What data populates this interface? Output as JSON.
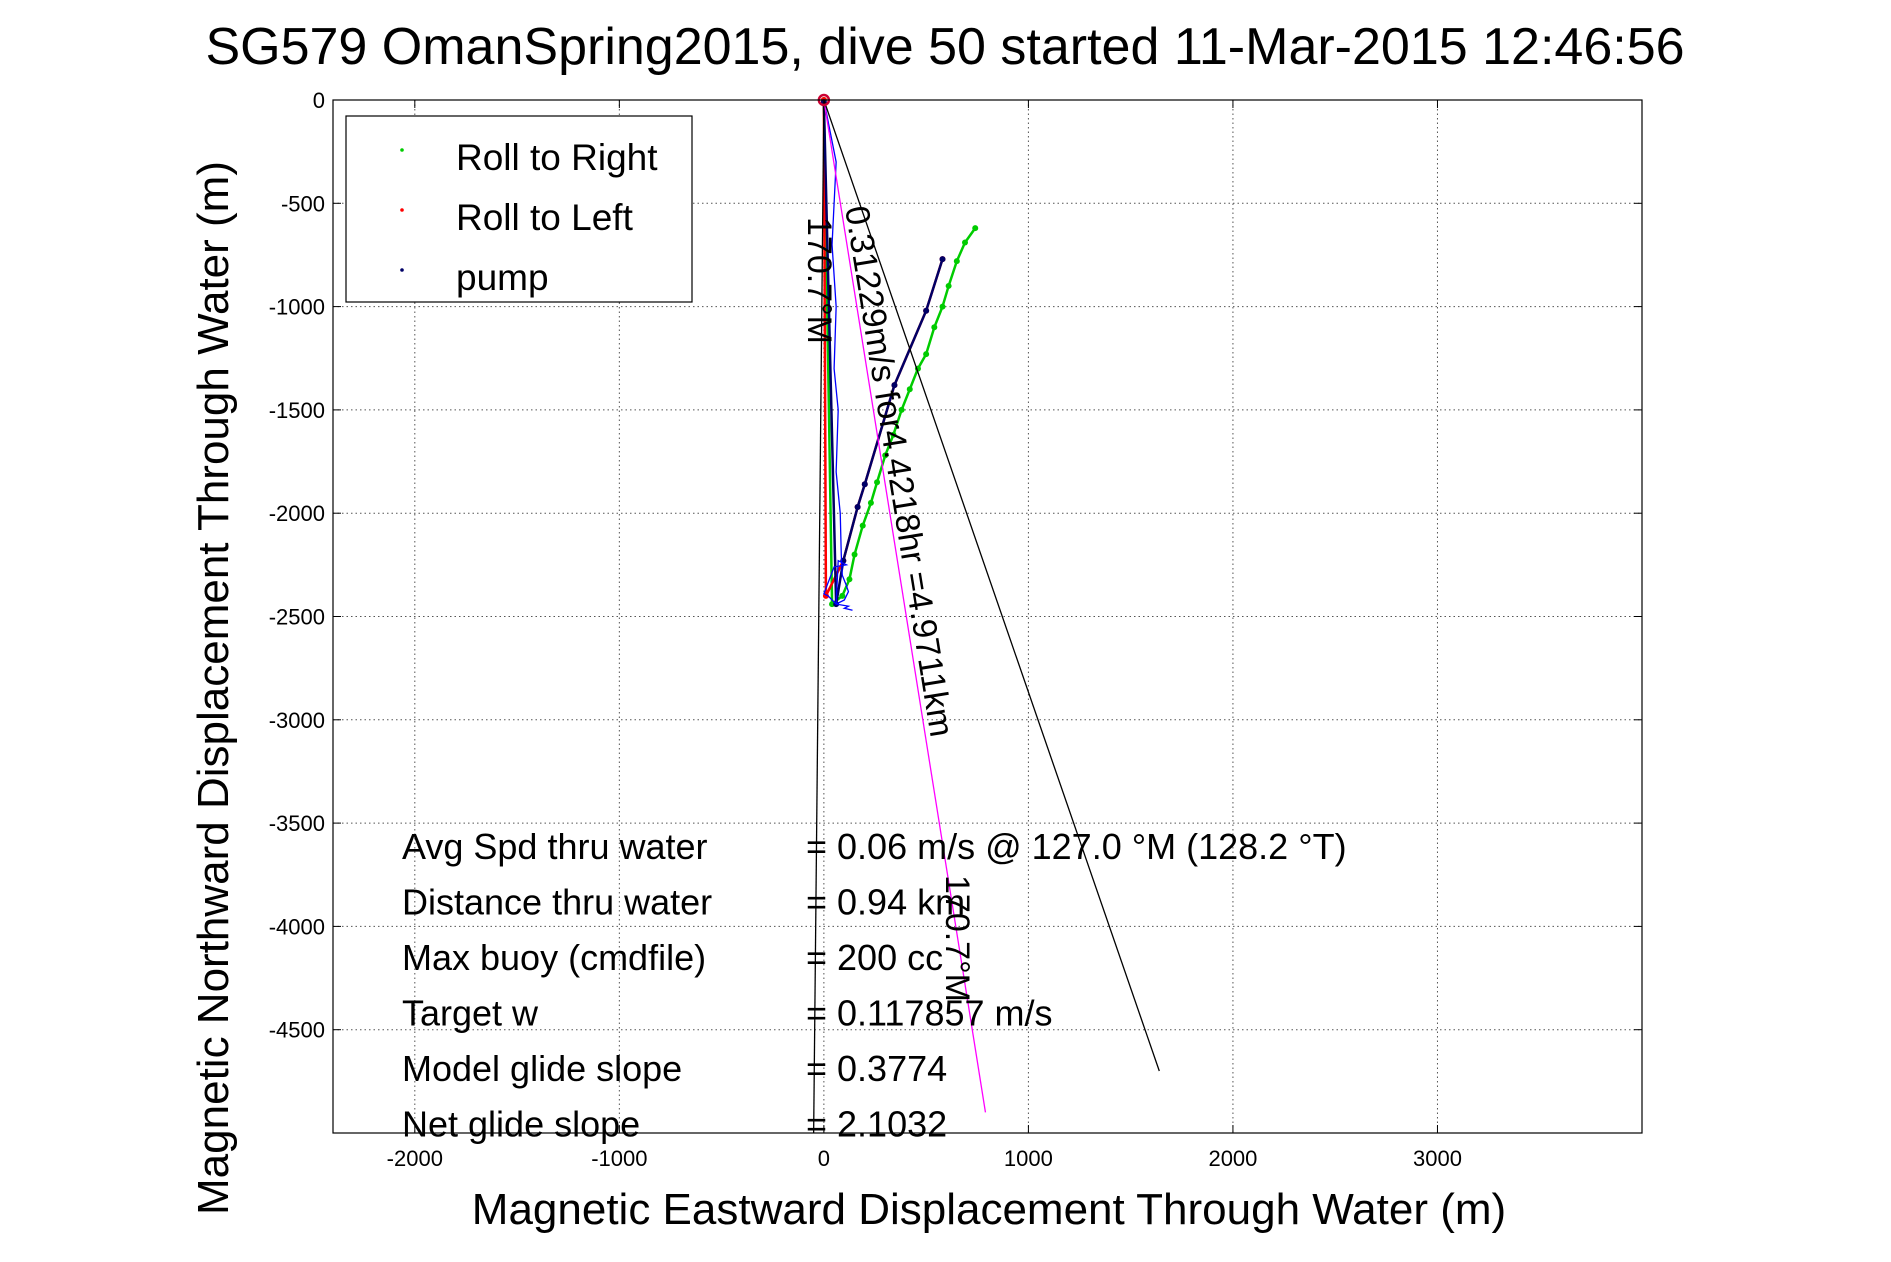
{
  "chart_data": {
    "type": "line",
    "title": "SG579 OmanSpring2015, dive 50 started 11-Mar-2015 12:46:56",
    "xlabel": "Magnetic Eastward Displacement Through Water (m)",
    "ylabel": "Magnetic Northward Displacement Through Water (m)",
    "xlim": [
      -2400,
      4000
    ],
    "ylim": [
      -5000,
      0
    ],
    "xticks": [
      -2000,
      -1000,
      0,
      1000,
      2000,
      3000
    ],
    "yticks": [
      0,
      -500,
      -1000,
      -1500,
      -2000,
      -2500,
      -3000,
      -3500,
      -4000,
      -4500
    ],
    "grid": true,
    "legend_position": "top-left",
    "legend": [
      {
        "label": "Roll to Right",
        "color": "#00cc00"
      },
      {
        "label": "Roll to Left",
        "color": "#ff0000"
      },
      {
        "label": "pump",
        "color": "#000066"
      }
    ],
    "series": [
      {
        "name": "Roll to Right",
        "color": "#00cc00",
        "x": [
          0,
          40,
          90,
          125,
          150,
          190,
          230,
          260,
          300,
          340,
          380,
          420,
          460,
          500,
          540,
          580,
          610,
          650,
          690,
          740
        ],
        "y": [
          0,
          -2440,
          -2400,
          -2320,
          -2200,
          -2060,
          -1950,
          -1850,
          -1720,
          -1620,
          -1500,
          -1400,
          -1300,
          -1230,
          -1100,
          -1000,
          -900,
          -780,
          -690,
          -620
        ]
      },
      {
        "name": "Roll to Left",
        "color": "#ff0000",
        "x": [
          0,
          10,
          95,
          165,
          200,
          345,
          500,
          580
        ],
        "y": [
          0,
          -2400,
          -2230,
          -1970,
          -1860,
          -1380,
          -1020,
          -770
        ]
      },
      {
        "name": "pump",
        "color": "#000066",
        "x": [
          0,
          60,
          95,
          165,
          200,
          345,
          500,
          580
        ],
        "y": [
          -10,
          -2440,
          -2230,
          -1970,
          -1860,
          -1380,
          -1020,
          -770
        ]
      },
      {
        "name": "",
        "color": "#0000ff",
        "x": [
          0,
          60,
          40,
          60,
          50,
          70,
          60,
          80,
          85,
          90,
          110,
          120,
          100,
          60,
          20,
          0,
          50,
          110,
          70,
          60,
          120,
          100,
          140
        ],
        "y": [
          0,
          -300,
          -700,
          -1000,
          -1300,
          -1500,
          -1800,
          -2000,
          -2200,
          -2300,
          -2350,
          -2380,
          -2420,
          -2440,
          -2400,
          -2390,
          -2260,
          -2250,
          -2230,
          -2440,
          -2450,
          -2460,
          -2470
        ]
      },
      {
        "name": "",
        "color": "#ff00ff",
        "x": [
          0,
          790
        ],
        "y": [
          0,
          -4900
        ]
      },
      {
        "name": "",
        "color": "#000000",
        "x": [
          0,
          1640
        ],
        "y": [
          0,
          -4700
        ]
      },
      {
        "name": "",
        "color": "#000000",
        "x": [
          0,
          -50
        ],
        "y": [
          0,
          -5000
        ]
      }
    ],
    "annotations": [
      {
        "text": "0.31229m/s for4.4218hr =4.9711km",
        "angle_deg": 80.8
      },
      {
        "text": "170.7°M",
        "angle_deg": 90
      },
      {
        "text": "170.7°M",
        "angle_deg": 90
      }
    ],
    "stats": [
      {
        "label": "Avg Spd thru water",
        "value": "=  0.06 m/s @ 127.0 °M (128.2 °T)"
      },
      {
        "label": "Distance thru water",
        "value": "=  0.94 km"
      },
      {
        "label": "Max buoy (cmdfile)",
        "value": "= 200 cc"
      },
      {
        "label": "Target w",
        "value": "= 0.117857 m/s"
      },
      {
        "label": "Model glide slope",
        "value": "= 0.3774"
      },
      {
        "label": "Net glide slope",
        "value": "= 2.1032"
      }
    ]
  }
}
